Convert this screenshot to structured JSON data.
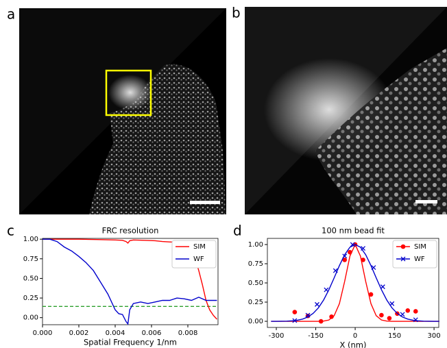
{
  "panel_labels": [
    "a",
    "b",
    "c",
    "d"
  ],
  "chart_data": [
    {
      "type": "line",
      "title": "FRC resolution",
      "x_label": "Spatial Frequency 1/nm",
      "xlim": [
        0,
        0.00966
      ],
      "ylim": [
        -0.09,
        1.01
      ],
      "xticks": [
        {
          "value": 0,
          "label": "0.000"
        },
        {
          "value": 0.002,
          "label": "0.002"
        },
        {
          "value": 0.004,
          "label": "0.004"
        },
        {
          "value": 0.006,
          "label": "0.006"
        },
        {
          "value": 0.008,
          "label": "0.008"
        }
      ],
      "yticks": [
        {
          "value": 0,
          "label": "0.00"
        },
        {
          "value": 0.25,
          "label": "0.25"
        },
        {
          "value": 0.5,
          "label": "0.50"
        },
        {
          "value": 0.75,
          "label": "0.75"
        },
        {
          "value": 1,
          "label": "1.00"
        }
      ],
      "threshold": 0.143,
      "threshold_color": "#2ca02c",
      "series": [
        {
          "name": "SIM",
          "color": "#ff0000",
          "x": [
            0,
            0.001,
            0.002,
            0.003,
            0.004,
            0.0044,
            0.0046,
            0.0047,
            0.0048,
            0.005,
            0.0056,
            0.0062,
            0.0066,
            0.007,
            0.0076,
            0.008,
            0.0082,
            0.0084,
            0.0086,
            0.0088,
            0.009,
            0.0092,
            0.0094,
            0.0096
          ],
          "values": [
            1.0,
            1.0,
            1.0,
            0.995,
            0.99,
            0.985,
            0.97,
            0.95,
            0.98,
            0.99,
            0.985,
            0.98,
            0.97,
            0.965,
            0.96,
            0.95,
            0.9,
            0.75,
            0.6,
            0.42,
            0.22,
            0.1,
            0.03,
            -0.02
          ]
        },
        {
          "name": "WF",
          "color": "#0000cc",
          "x": [
            0,
            0.0004,
            0.0008,
            0.0012,
            0.0016,
            0.002,
            0.0024,
            0.0028,
            0.0032,
            0.0036,
            0.004,
            0.0042,
            0.0044,
            0.0046,
            0.0047,
            0.0048,
            0.005,
            0.0054,
            0.0058,
            0.0062,
            0.0066,
            0.007,
            0.0074,
            0.0078,
            0.0082,
            0.0086,
            0.009,
            0.0096
          ],
          "values": [
            1.0,
            1.0,
            0.97,
            0.9,
            0.85,
            0.78,
            0.7,
            0.6,
            0.45,
            0.3,
            0.1,
            0.05,
            0.04,
            -0.05,
            -0.08,
            0.1,
            0.18,
            0.2,
            0.18,
            0.2,
            0.22,
            0.22,
            0.25,
            0.24,
            0.22,
            0.26,
            0.22,
            0.22
          ]
        }
      ]
    },
    {
      "type": "fit",
      "title": "100 nm bead fit",
      "x_label": "X (nm)",
      "xlim": [
        -334,
        318
      ],
      "ylim": [
        -0.08,
        1.08
      ],
      "xticks": [
        -300,
        -150,
        0,
        150,
        300
      ],
      "yticks": [
        {
          "value": 0,
          "label": "0.00"
        },
        {
          "value": 0.25,
          "label": "0.25"
        },
        {
          "value": 0.5,
          "label": "0.50"
        },
        {
          "value": 0.75,
          "label": "0.75"
        },
        {
          "value": 1,
          "label": "1.00"
        }
      ],
      "series": [
        {
          "name": "SIM",
          "color": "#ff0000",
          "marker": "o",
          "x": [
            -320,
            -300,
            -280,
            -260,
            -240,
            -220,
            -200,
            -180,
            -160,
            -140,
            -120,
            -100,
            -80,
            -60,
            -40,
            -20,
            0,
            20,
            40,
            60,
            80,
            100,
            120,
            140,
            160,
            180,
            200,
            220,
            240,
            260,
            280,
            300,
            320
          ],
          "values": [
            0,
            0,
            0,
            0,
            0,
            0,
            0,
            0,
            0,
            0,
            0.003,
            0.017,
            0.073,
            0.23,
            0.52,
            0.849,
            1,
            0.849,
            0.52,
            0.23,
            0.073,
            0.017,
            0.003,
            0,
            0,
            0,
            0,
            0,
            0,
            0,
            0,
            0,
            0
          ],
          "points_x": [
            -230,
            -180,
            -130,
            -90,
            -40,
            -20,
            0,
            30,
            60,
            100,
            130,
            160,
            200,
            230
          ],
          "points": [
            0.12,
            0.07,
            0.0,
            0.06,
            0.8,
            0.9,
            1.0,
            0.8,
            0.35,
            0.08,
            0.04,
            0.1,
            0.14,
            0.13
          ]
        },
        {
          "name": "WF",
          "color": "#0000cc",
          "marker": "x",
          "x": [
            -320,
            -300,
            -280,
            -260,
            -240,
            -220,
            -200,
            -180,
            -160,
            -140,
            -120,
            -100,
            -80,
            -60,
            -40,
            -20,
            0,
            20,
            40,
            60,
            80,
            100,
            120,
            140,
            160,
            180,
            200,
            220,
            240,
            260,
            280,
            300,
            320
          ],
          "values": [
            0,
            0,
            0.001,
            0.002,
            0.006,
            0.014,
            0.029,
            0.056,
            0.103,
            0.175,
            0.278,
            0.411,
            0.566,
            0.726,
            0.867,
            0.965,
            1,
            0.965,
            0.867,
            0.726,
            0.566,
            0.411,
            0.278,
            0.175,
            0.103,
            0.056,
            0.029,
            0.014,
            0.006,
            0.002,
            0.001,
            0,
            0
          ],
          "points_x": [
            -230,
            -180,
            -145,
            -110,
            -75,
            -40,
            -10,
            30,
            70,
            105,
            140,
            180,
            230
          ],
          "points": [
            0.01,
            0.08,
            0.22,
            0.41,
            0.66,
            0.85,
            1.0,
            0.95,
            0.7,
            0.45,
            0.23,
            0.09,
            0.02
          ]
        }
      ]
    }
  ]
}
